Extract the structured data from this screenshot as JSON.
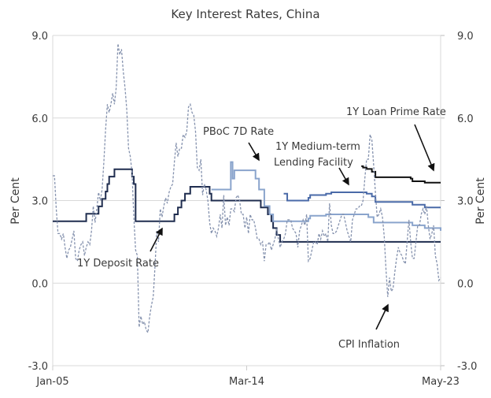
{
  "chart_data": {
    "type": "line",
    "title": "Key Interest Rates, China",
    "ylabel_left": "Per Cent",
    "ylabel_right": "Per Cent",
    "ylim": [
      -3.0,
      9.0
    ],
    "yticks": [
      "-3.0",
      "0.0",
      "3.0",
      "6.0",
      "9.0"
    ],
    "yticks_right": [
      "-3.0",
      "0.0",
      "3.0",
      "6.0",
      "9.0"
    ],
    "xlim": [
      "2005-01",
      "2023-05"
    ],
    "xticks": [
      {
        "date": "2005-01",
        "label": "Jan-05"
      },
      {
        "date": "2014-03",
        "label": "Mar-14"
      },
      {
        "date": "2023-05",
        "label": "May-23"
      }
    ],
    "grid": "horizontal",
    "series": [
      {
        "name": "1Y Deposit Rate",
        "style": "step",
        "color": "#1f2d4f",
        "points": [
          [
            "2005-01",
            2.25
          ],
          [
            "2006-08",
            2.52
          ],
          [
            "2007-03",
            2.79
          ],
          [
            "2007-05",
            3.06
          ],
          [
            "2007-07",
            3.33
          ],
          [
            "2007-08",
            3.6
          ],
          [
            "2007-09",
            3.87
          ],
          [
            "2007-12",
            4.14
          ],
          [
            "2008-10",
            3.87
          ],
          [
            "2008-11",
            3.6
          ],
          [
            "2008-12",
            2.25
          ],
          [
            "2010-10",
            2.5
          ],
          [
            "2010-12",
            2.75
          ],
          [
            "2011-02",
            3.0
          ],
          [
            "2011-04",
            3.25
          ],
          [
            "2011-07",
            3.5
          ],
          [
            "2012-06",
            3.25
          ],
          [
            "2012-07",
            3.0
          ],
          [
            "2014-11",
            2.75
          ],
          [
            "2015-03",
            2.5
          ],
          [
            "2015-05",
            2.25
          ],
          [
            "2015-06",
            2.0
          ],
          [
            "2015-08",
            1.75
          ],
          [
            "2015-10",
            1.5
          ],
          [
            "2023-05",
            1.5
          ]
        ]
      },
      {
        "name": "PBoC 7D Rate",
        "style": "step",
        "color": "#8aa4cc",
        "points": [
          [
            "2012-07",
            3.4
          ],
          [
            "2013-06",
            4.4
          ],
          [
            "2013-07",
            3.8
          ],
          [
            "2013-08",
            4.1
          ],
          [
            "2014-06",
            4.1
          ],
          [
            "2014-08",
            3.8
          ],
          [
            "2014-10",
            3.4
          ],
          [
            "2015-01",
            2.8
          ],
          [
            "2015-04",
            2.5
          ],
          [
            "2015-06",
            2.25
          ],
          [
            "2017-02",
            2.35
          ],
          [
            "2017-03",
            2.45
          ],
          [
            "2017-12",
            2.5
          ],
          [
            "2019-11",
            2.5
          ],
          [
            "2019-12",
            2.4
          ],
          [
            "2020-03",
            2.2
          ],
          [
            "2022-01",
            2.1
          ],
          [
            "2022-08",
            2.0
          ],
          [
            "2023-05",
            1.9
          ]
        ]
      },
      {
        "name": "1Y Medium-term Lending Facility",
        "style": "step",
        "color": "#4a6aa8",
        "points": [
          [
            "2015-12",
            3.25
          ],
          [
            "2016-02",
            3.0
          ],
          [
            "2017-02",
            3.1
          ],
          [
            "2017-03",
            3.2
          ],
          [
            "2017-12",
            3.25
          ],
          [
            "2018-03",
            3.3
          ],
          [
            "2019-11",
            3.25
          ],
          [
            "2020-02",
            3.15
          ],
          [
            "2020-04",
            2.95
          ],
          [
            "2022-01",
            2.85
          ],
          [
            "2022-08",
            2.75
          ],
          [
            "2023-05",
            2.75
          ]
        ]
      },
      {
        "name": "1Y Loan Prime Rate",
        "style": "step",
        "color": "#111111",
        "points": [
          [
            "2019-08",
            4.25
          ],
          [
            "2019-09",
            4.2
          ],
          [
            "2019-11",
            4.15
          ],
          [
            "2020-02",
            4.05
          ],
          [
            "2020-04",
            3.85
          ],
          [
            "2021-12",
            3.8
          ],
          [
            "2022-01",
            3.7
          ],
          [
            "2022-08",
            3.65
          ],
          [
            "2023-05",
            3.65
          ]
        ]
      },
      {
        "name": "CPI Inflation",
        "style": "dashed",
        "color": "#8592ae",
        "start": "2005-01",
        "monthly": [
          3.9,
          3.9,
          2.7,
          1.8,
          1.8,
          1.6,
          1.8,
          1.3,
          0.9,
          1.2,
          1.3,
          1.6,
          1.9,
          0.9,
          0.8,
          1.2,
          1.4,
          1.5,
          1.0,
          1.3,
          1.5,
          1.4,
          1.9,
          2.8,
          2.2,
          2.7,
          3.3,
          3.0,
          3.4,
          4.4,
          5.6,
          6.5,
          6.2,
          6.5,
          6.9,
          6.5,
          7.1,
          8.7,
          8.3,
          8.5,
          7.7,
          7.1,
          6.3,
          4.9,
          4.6,
          4.0,
          2.4,
          1.2,
          1.0,
          -1.6,
          -1.2,
          -1.5,
          -1.4,
          -1.7,
          -1.8,
          -1.2,
          -0.8,
          -0.5,
          0.6,
          1.9,
          1.5,
          2.7,
          2.4,
          2.8,
          3.1,
          2.9,
          3.3,
          3.5,
          3.6,
          4.4,
          5.1,
          4.6,
          4.9,
          4.9,
          5.4,
          5.3,
          5.5,
          6.4,
          6.5,
          6.2,
          6.1,
          5.5,
          4.2,
          4.1,
          4.5,
          3.2,
          3.6,
          3.4,
          3.0,
          2.2,
          1.8,
          2.0,
          1.9,
          1.7,
          2.0,
          2.5,
          2.0,
          3.2,
          2.1,
          2.4,
          2.1,
          2.7,
          2.7,
          2.6,
          3.1,
          3.2,
          3.0,
          2.5,
          2.5,
          2.0,
          2.4,
          1.8,
          2.5,
          2.3,
          2.3,
          2.0,
          1.6,
          1.6,
          1.4,
          1.5,
          0.8,
          1.4,
          1.4,
          1.5,
          1.2,
          1.4,
          1.6,
          2.0,
          1.6,
          1.3,
          1.5,
          1.6,
          1.8,
          2.3,
          2.3,
          2.3,
          2.0,
          1.9,
          1.8,
          1.3,
          1.9,
          2.1,
          2.3,
          2.1,
          2.5,
          0.8,
          0.9,
          1.2,
          1.5,
          1.5,
          1.4,
          1.8,
          1.6,
          1.9,
          1.7,
          1.8,
          1.5,
          2.9,
          2.1,
          1.8,
          1.8,
          1.9,
          2.1,
          2.3,
          2.5,
          2.5,
          2.2,
          1.9,
          1.7,
          1.5,
          2.3,
          2.5,
          2.7,
          2.7,
          2.8,
          2.8,
          3.0,
          3.8,
          4.5,
          4.5,
          5.4,
          5.2,
          4.3,
          3.3,
          2.4,
          2.5,
          2.7,
          2.4,
          1.7,
          0.5,
          -0.5,
          0.2,
          -0.3,
          -0.2,
          0.4,
          0.9,
          1.3,
          1.1,
          1.0,
          0.8,
          0.7,
          1.5,
          2.3,
          1.5,
          0.9,
          0.9,
          1.5,
          2.1,
          2.1,
          2.5,
          2.7,
          2.5,
          2.8,
          2.1,
          1.6,
          1.8,
          2.1,
          1.0,
          0.7,
          0.1,
          0.2
        ]
      }
    ],
    "annotations": {
      "deposit": "1Y Deposit Rate",
      "pboc": "PBoC 7D Rate",
      "mlf_line1": "1Y Medium-term",
      "mlf_line2": "Lending Facility",
      "lpr": "1Y Loan Prime Rate",
      "cpi": "CPI  Inflation"
    }
  }
}
